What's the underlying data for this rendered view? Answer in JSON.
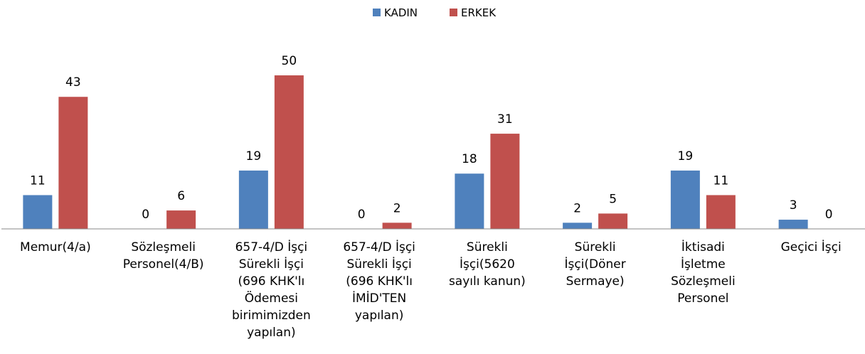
{
  "chart_data": {
    "type": "bar",
    "categories": [
      "Memur(4/a)",
      "Sözleşmeli Personel(4/B)",
      "657-4/D İşçi Sürekli İşçi (696 KHK'lı Ödemesi birimimizden yapılan)",
      "657-4/D İşçi Sürekli İşçi (696 KHK'lı İMİD'TEN yapılan)",
      "Sürekli İşçi(5620 sayılı kanun)",
      "Sürekli İşçi(Döner Sermaye)",
      "İktisadi İşletme Sözleşmeli Personel",
      "Geçici İşçi"
    ],
    "series": [
      {
        "name": "KADIN",
        "color": "#4f81bd",
        "values": [
          11,
          0,
          19,
          0,
          18,
          2,
          19,
          3
        ]
      },
      {
        "name": "ERKEK",
        "color": "#c0504d",
        "values": [
          43,
          6,
          50,
          2,
          31,
          5,
          11,
          0
        ]
      }
    ],
    "ylim": [
      0,
      50
    ],
    "legend": "top"
  }
}
